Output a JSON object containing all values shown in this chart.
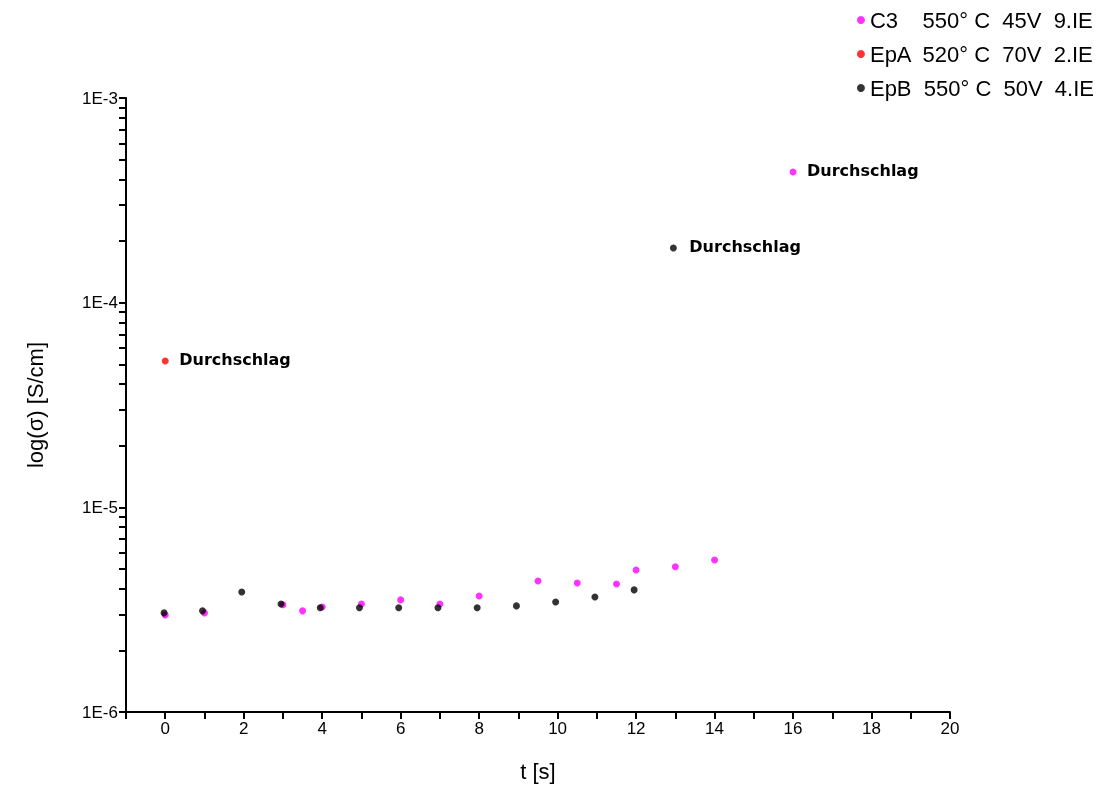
{
  "chart_data": {
    "type": "scatter",
    "xlabel": "t [s]",
    "ylabel": "log(σ) [S/cm]",
    "log": "y",
    "legend": "top right",
    "marker": "circle",
    "grid": false,
    "xlim": [
      -1,
      20
    ],
    "xticks": [
      {
        "value": -1,
        "label": null
      },
      0,
      {
        "value": 1,
        "label": null
      },
      2,
      {
        "value": 3,
        "label": null
      },
      4,
      {
        "value": 5,
        "label": null
      },
      6,
      {
        "value": 7,
        "label": null
      },
      8,
      {
        "value": 9,
        "label": null
      },
      10,
      {
        "value": 11,
        "label": null
      },
      12,
      {
        "value": 13,
        "label": null
      },
      14,
      {
        "value": 15,
        "label": null
      },
      16,
      {
        "value": 17,
        "label": null
      },
      18,
      {
        "value": 19,
        "label": null
      },
      20
    ],
    "ylim": [
      1e-06,
      0.001
    ],
    "yticks": [
      {
        "value": 1e-06,
        "label": "1E-6"
      },
      {
        "value": 2e-06,
        "label": null
      },
      {
        "value": 3e-06,
        "label": null
      },
      {
        "value": 4e-06,
        "label": null
      },
      {
        "value": 5e-06,
        "label": null
      },
      {
        "value": 6e-06,
        "label": null
      },
      {
        "value": 7e-06,
        "label": null
      },
      {
        "value": 8e-06,
        "label": null
      },
      {
        "value": 9e-06,
        "label": null
      },
      {
        "value": 1e-05,
        "label": "1E-5"
      },
      {
        "value": 2e-05,
        "label": null
      },
      {
        "value": 3e-05,
        "label": null
      },
      {
        "value": 4e-05,
        "label": null
      },
      {
        "value": 5e-05,
        "label": null
      },
      {
        "value": 6e-05,
        "label": null
      },
      {
        "value": 7e-05,
        "label": null
      },
      {
        "value": 8e-05,
        "label": null
      },
      {
        "value": 9e-05,
        "label": null
      },
      {
        "value": 0.0001,
        "label": "1E-4"
      },
      {
        "value": 0.0002,
        "label": null
      },
      {
        "value": 0.0003,
        "label": null
      },
      {
        "value": 0.0004,
        "label": null
      },
      {
        "value": 0.0005,
        "label": null
      },
      {
        "value": 0.0006,
        "label": null
      },
      {
        "value": 0.0007,
        "label": null
      },
      {
        "value": 0.0008,
        "label": null
      },
      {
        "value": 0.0009,
        "label": null
      },
      {
        "value": 0.001,
        "label": "1E-3"
      }
    ],
    "series": [
      {
        "name": "C3    550° C  45V  9.IE",
        "color": "#ff00ff",
        "x": [
          0,
          1,
          3,
          3.5,
          4,
          5,
          6,
          7,
          8,
          9.5,
          10.5,
          11.5,
          12,
          13,
          14,
          16
        ],
        "values": [
          2.98e-06,
          3.05e-06,
          3.34e-06,
          3.12e-06,
          3.26e-06,
          3.37e-06,
          3.53e-06,
          3.37e-06,
          3.69e-06,
          4.37e-06,
          4.27e-06,
          4.22e-06,
          4.94e-06,
          5.12e-06,
          5.53e-06,
          0.000435
        ]
      },
      {
        "name": "EpA  520° C  70V  2.IE",
        "color": "#ff0000",
        "x": [
          0
        ],
        "values": [
          5.19e-05
        ]
      },
      {
        "name": "EpB  550° C  50V  4.IE",
        "color": "#000000",
        "x": [
          -0.03,
          0.95,
          1.95,
          2.95,
          3.95,
          4.95,
          5.95,
          6.95,
          7.95,
          8.95,
          9.95,
          10.95,
          11.95,
          12.95
        ],
        "values": [
          3.05e-06,
          3.12e-06,
          3.86e-06,
          3.37e-06,
          3.23e-06,
          3.23e-06,
          3.23e-06,
          3.23e-06,
          3.23e-06,
          3.3e-06,
          3.45e-06,
          3.65e-06,
          3.95e-06,
          0.000185
        ]
      }
    ],
    "annotations": [
      {
        "text": "Durchschlag",
        "x": 16,
        "y": 0.000435
      },
      {
        "text": "Durchschlag",
        "x": 13,
        "y": 0.000185
      },
      {
        "text": "Durchschlag",
        "x": 0,
        "y": 5.19e-05
      }
    ]
  }
}
